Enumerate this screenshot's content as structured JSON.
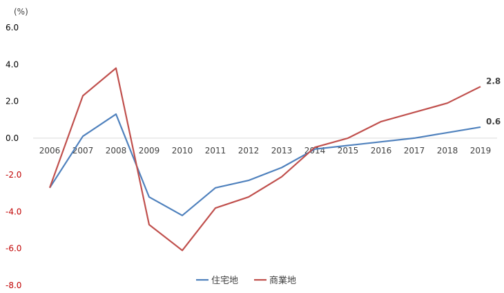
{
  "chart_data": {
    "type": "line",
    "unit_label": "(%)",
    "categories": [
      "2006",
      "2007",
      "2008",
      "2009",
      "2010",
      "2011",
      "2012",
      "2013",
      "2014",
      "2015",
      "2016",
      "2017",
      "2018",
      "2019"
    ],
    "series": [
      {
        "name": "住宅地",
        "color": "#4f81bd",
        "values": [
          -2.7,
          0.1,
          1.3,
          -3.2,
          -4.2,
          -2.7,
          -2.3,
          -1.6,
          -0.6,
          -0.4,
          -0.2,
          0.0,
          0.3,
          0.6
        ],
        "end_label": "0.6"
      },
      {
        "name": "商業地",
        "color": "#c0504d",
        "values": [
          -2.7,
          2.3,
          3.8,
          -4.7,
          -6.1,
          -3.8,
          -3.2,
          -2.1,
          -0.5,
          0.0,
          0.9,
          1.4,
          1.9,
          2.8
        ],
        "end_label": "2.8"
      }
    ],
    "y_ticks": [
      "6.0",
      "4.0",
      "2.0",
      "0.0",
      "-2.0",
      "-4.0",
      "-6.0",
      "-8.0"
    ],
    "y_tick_values": [
      6,
      4,
      2,
      0,
      -2,
      -4,
      -6,
      -8
    ],
    "ylim": [
      -8,
      6
    ],
    "negative_tick_color": "#c00000",
    "positive_tick_color": "#000000",
    "axis_line_color": "#d9d9d9",
    "legend_position": "bottom-center",
    "grid": false
  }
}
